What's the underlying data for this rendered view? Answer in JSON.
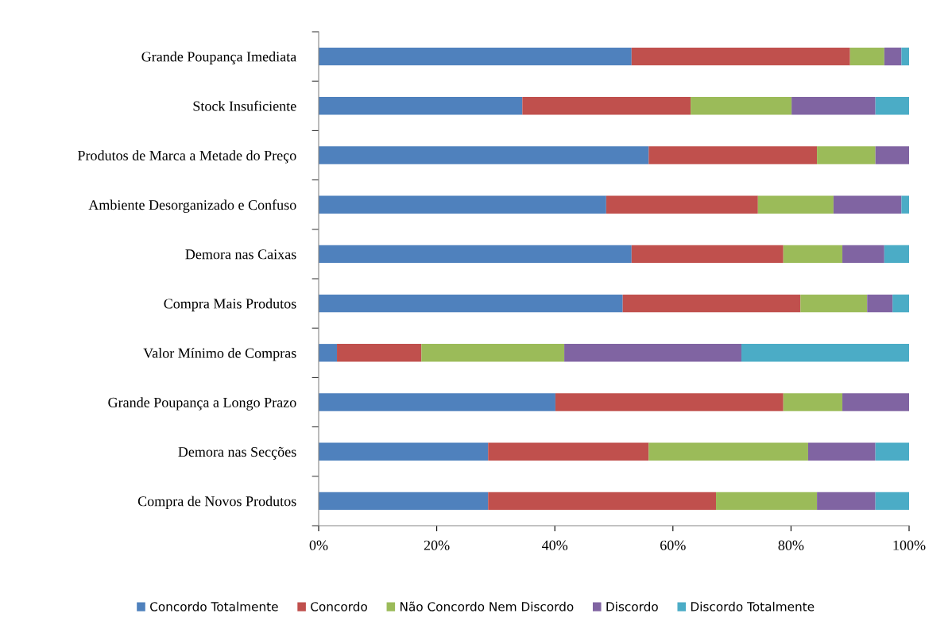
{
  "chart_data": {
    "type": "bar",
    "orientation": "horizontal",
    "stacked": true,
    "categories": [
      "Grande Poupança Imediata",
      "Stock Insuficiente",
      "Produtos de Marca a Metade do Preço",
      "Ambiente Desorganizado e Confuso",
      "Demora nas Caixas",
      "Compra Mais Produtos",
      "Valor Mínimo de Compras",
      "Grande Poupança a Longo Prazo",
      "Demora nas Secções",
      "Compra de Novos Produtos"
    ],
    "series": [
      {
        "name": "Concordo Totalmente",
        "color": "#4f81bd",
        "values": [
          53.0,
          34.5,
          55.9,
          48.7,
          53.0,
          51.5,
          3.1,
          40.1,
          28.7,
          28.7
        ]
      },
      {
        "name": "Concordo",
        "color": "#c0504d",
        "values": [
          37.0,
          28.5,
          28.5,
          25.7,
          25.7,
          30.1,
          14.3,
          38.6,
          27.2,
          38.6
        ]
      },
      {
        "name": "Não Concordo Nem Discordo",
        "color": "#9bbb59",
        "values": [
          5.8,
          17.1,
          9.9,
          12.8,
          10.0,
          11.3,
          24.2,
          10.0,
          27.0,
          17.1
        ]
      },
      {
        "name": "Discordo",
        "color": "#8064a2",
        "values": [
          2.9,
          14.2,
          5.7,
          11.5,
          7.1,
          4.3,
          30.0,
          11.3,
          11.4,
          9.9
        ]
      },
      {
        "name": "Discordo Totalmente",
        "color": "#4bacc6",
        "values": [
          1.3,
          5.7,
          0,
          1.3,
          4.2,
          2.8,
          28.4,
          0,
          5.7,
          5.7
        ]
      }
    ],
    "xlim": [
      0,
      100
    ],
    "xticks": [
      {
        "value": 0,
        "label": "0%"
      },
      {
        "value": 20,
        "label": "20%"
      },
      {
        "value": 40,
        "label": "40%"
      },
      {
        "value": 60,
        "label": "60%"
      },
      {
        "value": 80,
        "label": "80%"
      },
      {
        "value": 100,
        "label": "100%"
      }
    ],
    "grid": false,
    "legend": "bottom"
  }
}
